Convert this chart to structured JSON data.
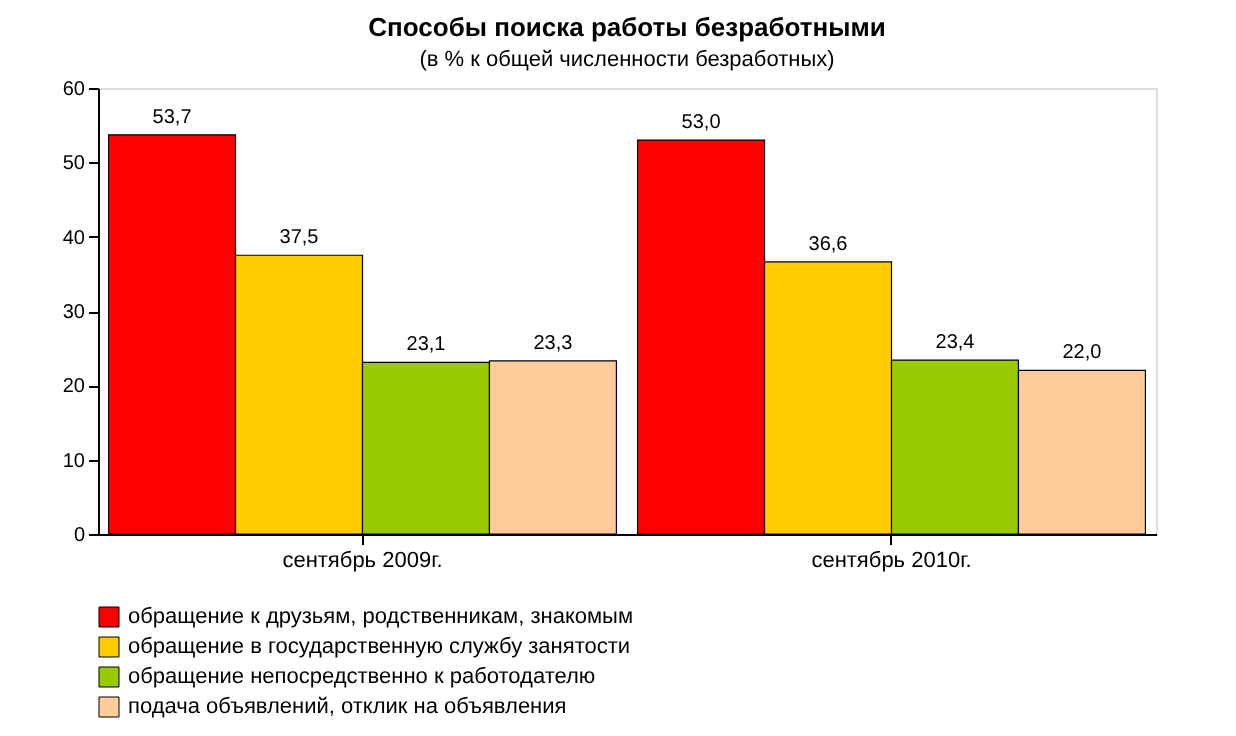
{
  "chart_data": {
    "type": "bar",
    "title": "Способы поиска работы безработными",
    "subtitle": "(в  % к общей численности безработных)",
    "categories": [
      "сентябрь 2009г.",
      "сентябрь 2010г."
    ],
    "series": [
      {
        "name": "обращение к друзьям, родственникам, знакомым",
        "color": "#ff0000",
        "values": [
          53.7,
          53.0
        ],
        "value_labels": [
          "53,7",
          "53,0"
        ]
      },
      {
        "name": "обращение в государственную службу занятости",
        "color": "#ffcc00",
        "values": [
          37.5,
          36.6
        ],
        "value_labels": [
          "37,5",
          "36,6"
        ]
      },
      {
        "name": "обращение непосредственно к работодателю",
        "color": "#99cc00",
        "values": [
          23.1,
          23.4
        ],
        "value_labels": [
          "23,1",
          "23,4"
        ]
      },
      {
        "name": "подача объявлений, отклик на объявления",
        "color": "#ffcc99",
        "values": [
          23.3,
          22.0
        ],
        "value_labels": [
          "23,3",
          "22,0"
        ]
      }
    ],
    "ylim": [
      0,
      60
    ],
    "yticks": [
      0,
      10,
      20,
      30,
      40,
      50,
      60
    ],
    "grid": false,
    "legend": "bottom"
  }
}
